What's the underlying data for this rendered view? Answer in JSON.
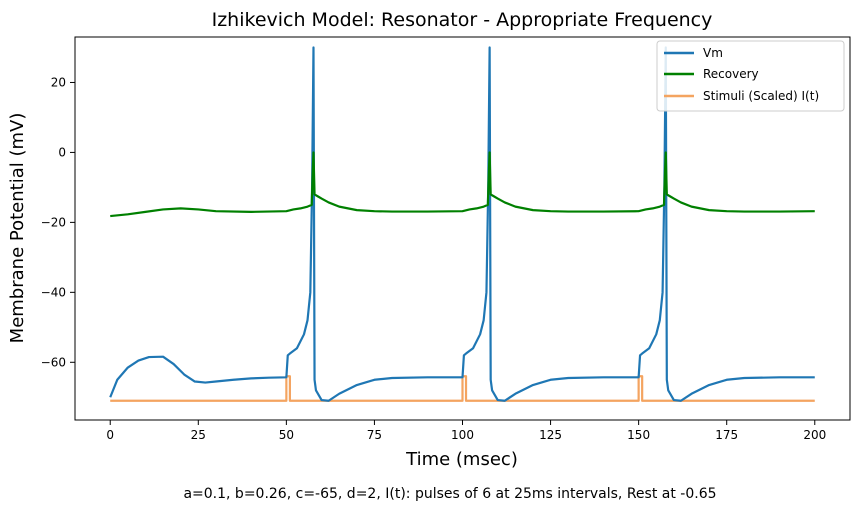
{
  "chart_data": {
    "type": "line",
    "title": "Izhikevich Model: Resonator - Appropriate Frequency",
    "xlabel": "Time (msec)",
    "ylabel": "Membrane Potential (mV)",
    "caption": "a=0.1, b=0.26, c=-65, d=2, I(t): pulses of 6 at 25ms intervals, Rest at -0.65",
    "xlim": [
      -10,
      210
    ],
    "ylim": [
      -76.5,
      33
    ],
    "xticks": [
      0,
      25,
      50,
      75,
      100,
      125,
      150,
      175,
      200
    ],
    "yticks": [
      -60,
      -40,
      -20,
      0,
      20
    ],
    "grid": false,
    "legend_position": "top-right",
    "series": [
      {
        "name": "Vm",
        "color": "#1f77b4",
        "x": [
          0,
          2,
          5,
          8,
          11,
          15,
          18,
          21,
          24,
          27,
          30,
          35,
          40,
          45,
          50,
          50.4,
          51,
          53,
          55,
          56,
          56.8,
          57.3,
          57.6,
          57.7,
          58,
          58.4,
          60,
          62,
          65,
          70,
          75,
          80,
          90,
          100,
          100.4,
          101,
          103,
          105,
          106,
          106.8,
          107.3,
          107.6,
          107.7,
          108,
          108.4,
          110,
          112,
          115,
          120,
          125,
          130,
          140,
          150,
          150.4,
          151,
          153,
          155,
          156,
          156.8,
          157.3,
          157.6,
          157.7,
          158,
          158.4,
          160,
          162,
          165,
          170,
          175,
          180,
          190,
          200
        ],
        "y": [
          -70,
          -65,
          -61.5,
          -59.5,
          -58.5,
          -58.4,
          -60.5,
          -63.5,
          -65.5,
          -65.8,
          -65.5,
          -65,
          -64.6,
          -64.4,
          -64.3,
          -58,
          -57.5,
          -56,
          -52,
          -48,
          -40,
          -10,
          20,
          30,
          -65,
          -68,
          -70.8,
          -71,
          -69,
          -66.5,
          -65,
          -64.5,
          -64.3,
          -64.3,
          -58,
          -57.5,
          -56,
          -52,
          -48,
          -40,
          -10,
          20,
          30,
          -65,
          -68,
          -70.8,
          -71,
          -69,
          -66.5,
          -65,
          -64.5,
          -64.3,
          -64.3,
          -58,
          -57.5,
          -56,
          -52,
          -48,
          -40,
          -10,
          20,
          30,
          -65,
          -68,
          -70.8,
          -71,
          -69,
          -66.5,
          -65,
          -64.5,
          -64.3,
          -64.3
        ]
      },
      {
        "name": "Recovery",
        "color": "#008000",
        "x": [
          0,
          5,
          10,
          15,
          20,
          25,
          30,
          40,
          50,
          52,
          54,
          56,
          57.2,
          57.5,
          57.7,
          58,
          59,
          60,
          62,
          65,
          70,
          75,
          80,
          90,
          100,
          102,
          104,
          106,
          107.2,
          107.5,
          107.7,
          108,
          109,
          110,
          112,
          115,
          120,
          125,
          130,
          140,
          150,
          152,
          154,
          156,
          157.2,
          157.5,
          157.7,
          158,
          159,
          160,
          162,
          165,
          170,
          175,
          180,
          190,
          200
        ],
        "y": [
          -18.2,
          -17.7,
          -17,
          -16.3,
          -16,
          -16.3,
          -16.8,
          -17,
          -16.8,
          -16.3,
          -16,
          -15.5,
          -15,
          -5,
          0,
          -12,
          -12.6,
          -13.2,
          -14.3,
          -15.5,
          -16.5,
          -16.8,
          -16.9,
          -16.9,
          -16.8,
          -16.3,
          -16,
          -15.5,
          -15,
          -5,
          0,
          -12,
          -12.6,
          -13.2,
          -14.3,
          -15.5,
          -16.5,
          -16.8,
          -16.9,
          -16.9,
          -16.8,
          -16.3,
          -16,
          -15.5,
          -15,
          -5,
          0,
          -12,
          -12.6,
          -13.2,
          -14.3,
          -15.5,
          -16.5,
          -16.8,
          -16.9,
          -16.9,
          -16.8
        ]
      },
      {
        "name": "Stimuli (Scaled) I(t)",
        "color": "#f4a460",
        "x": [
          0,
          50,
          50,
          51,
          51,
          100,
          100,
          101,
          101,
          150,
          150,
          151,
          151,
          200
        ],
        "y": [
          -71,
          -71,
          -64,
          -64,
          -71,
          -71,
          -64,
          -64,
          -71,
          -71,
          -64,
          -64,
          -71,
          -71
        ]
      }
    ]
  }
}
